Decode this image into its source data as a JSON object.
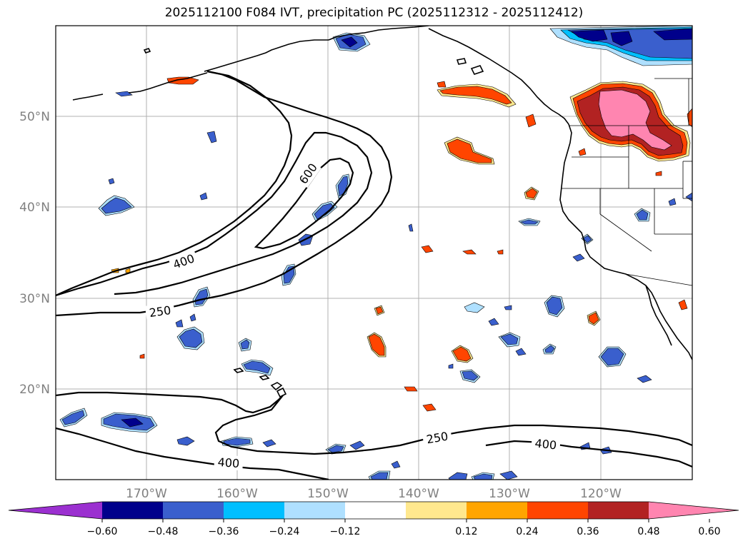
{
  "title": "2025112100 F084 IVT, precipitation PC (2025112312 - 2025112412)",
  "latitudes": [
    "50°N",
    "40°N",
    "30°N",
    "20°N"
  ],
  "longitudes": [
    "170°W",
    "160°W",
    "150°W",
    "140°W",
    "130°W",
    "120°W"
  ],
  "contours": {
    "levels": [
      "250",
      "400",
      "600"
    ],
    "labels": [
      "600",
      "400",
      "250",
      "250",
      "400",
      "400"
    ]
  },
  "colorbar": {
    "ticks": [
      "−0.60",
      "−0.48",
      "−0.36",
      "−0.24",
      "−0.12",
      "0.12",
      "0.24",
      "0.36",
      "0.48",
      "0.60"
    ],
    "colors": [
      "#9b30d0",
      "#00008b",
      "#3a5fcd",
      "#00bfff",
      "#afe0ff",
      "#ffffff",
      "#ffe88e",
      "#ffa500",
      "#ff4500",
      "#b22222",
      "#ff85b0"
    ]
  },
  "legend_colors": {
    "lightblue": "#afe0ff",
    "skyblue": "#00bfff",
    "royal": "#3a5fcd",
    "navy": "#00008b",
    "lightyellow": "#ffe88e",
    "orange": "#ffa500",
    "redorange": "#ff4500",
    "firebrick": "#b22222",
    "pink": "#ff85b0"
  }
}
